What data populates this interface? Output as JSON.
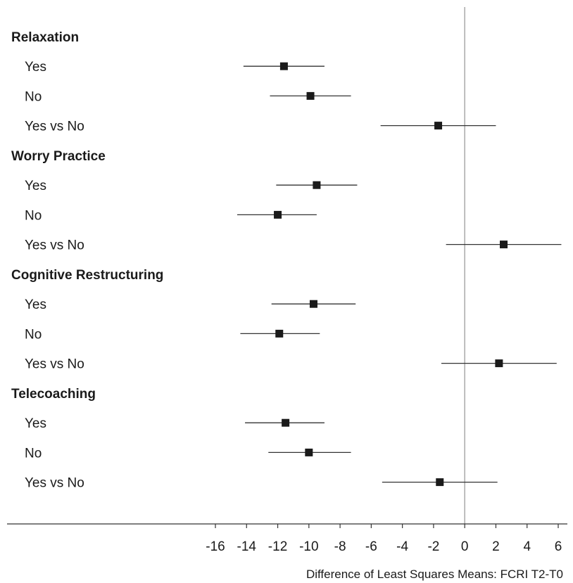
{
  "chart_data": {
    "type": "forest",
    "xlabel": "Difference of Least Squares Means: FCRI T2-T0",
    "xlim": [
      -16,
      6
    ],
    "ticks": [
      -16,
      -14,
      -12,
      -10,
      -8,
      -6,
      -4,
      -2,
      0,
      2,
      4,
      6
    ],
    "reference_line": 0,
    "groups": [
      {
        "name": "Relaxation",
        "rows": [
          {
            "label": "Yes",
            "estimate": -11.6,
            "lower": -14.2,
            "upper": -9.0
          },
          {
            "label": "No",
            "estimate": -9.9,
            "lower": -12.5,
            "upper": -7.3
          },
          {
            "label": "Yes vs No",
            "estimate": -1.7,
            "lower": -5.4,
            "upper": 2.0
          }
        ]
      },
      {
        "name": "Worry Practice",
        "rows": [
          {
            "label": "Yes",
            "estimate": -9.5,
            "lower": -12.1,
            "upper": -6.9
          },
          {
            "label": "No",
            "estimate": -12.0,
            "lower": -14.6,
            "upper": -9.5
          },
          {
            "label": "Yes vs No",
            "estimate": 2.5,
            "lower": -1.2,
            "upper": 6.2
          }
        ]
      },
      {
        "name": "Cognitive Restructuring",
        "rows": [
          {
            "label": "Yes",
            "estimate": -9.7,
            "lower": -12.4,
            "upper": -7.0
          },
          {
            "label": "No",
            "estimate": -11.9,
            "lower": -14.4,
            "upper": -9.3
          },
          {
            "label": "Yes vs No",
            "estimate": 2.2,
            "lower": -1.5,
            "upper": 5.9
          }
        ]
      },
      {
        "name": "Telecoaching",
        "rows": [
          {
            "label": "Yes",
            "estimate": -11.5,
            "lower": -14.1,
            "upper": -9.0
          },
          {
            "label": "No",
            "estimate": -10.0,
            "lower": -12.6,
            "upper": -7.3
          },
          {
            "label": "Yes vs No",
            "estimate": -1.6,
            "lower": -5.3,
            "upper": 2.1
          }
        ]
      }
    ]
  }
}
